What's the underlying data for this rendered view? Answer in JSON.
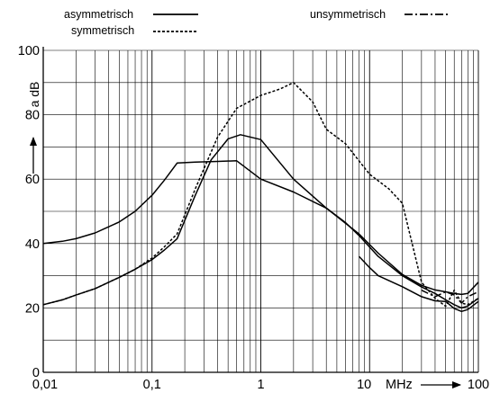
{
  "chart_data": {
    "type": "line",
    "title": "",
    "x_scale": "log",
    "y_scale": "linear",
    "xlim": [
      0.01,
      100
    ],
    "ylim": [
      0,
      100
    ],
    "grid": true,
    "xlabel": "MHz",
    "ylabel": "a dB",
    "x_ticks": [
      {
        "value": 0.01,
        "label": "0,01"
      },
      {
        "value": 0.1,
        "label": "0,1"
      },
      {
        "value": 1,
        "label": "1"
      },
      {
        "value": 10,
        "label": "10"
      },
      {
        "value": 100,
        "label": "100"
      }
    ],
    "y_ticks": [
      {
        "value": 0,
        "label": "0"
      },
      {
        "value": 20,
        "label": "20"
      },
      {
        "value": 40,
        "label": "40"
      },
      {
        "value": 60,
        "label": "60"
      },
      {
        "value": 80,
        "label": "80"
      },
      {
        "value": 100,
        "label": "100"
      }
    ],
    "legend": [
      {
        "label": "asymmetrisch",
        "style": "solid",
        "position": "top-left"
      },
      {
        "label": "symmetrisch",
        "style": "dotted",
        "position": "top-left"
      },
      {
        "label": "unsymmetrisch",
        "style": "dash-dot",
        "position": "top-right"
      }
    ],
    "series": [
      {
        "name": "asymmetrisch",
        "style": "solid",
        "curve": 1,
        "x": [
          0.01,
          0.015,
          0.02,
          0.03,
          0.05,
          0.07,
          0.1,
          0.13,
          0.17,
          0.25,
          0.4,
          0.6,
          1,
          2,
          4,
          8,
          12,
          20,
          30,
          40,
          50,
          60,
          70,
          80,
          100
        ],
        "y": [
          40,
          40.7,
          41.5,
          43.3,
          46.7,
          50,
          55,
          59.7,
          65,
          65.3,
          65.5,
          65.7,
          60,
          56,
          51,
          43,
          37,
          30.4,
          27,
          25.6,
          25,
          24.5,
          24.2,
          24.5,
          28
        ]
      },
      {
        "name": "asymmetrisch",
        "style": "solid",
        "curve": 2,
        "x": [
          0.01,
          0.015,
          0.02,
          0.03,
          0.05,
          0.07,
          0.1,
          0.13,
          0.17,
          0.25,
          0.35,
          0.5,
          0.65,
          1,
          2,
          4,
          6,
          8,
          12,
          20,
          30,
          40,
          50,
          60,
          70,
          80,
          100
        ],
        "y": [
          21,
          22.5,
          24,
          26,
          29.5,
          32,
          35,
          38,
          41.5,
          55,
          66,
          72.5,
          73.8,
          72.3,
          60,
          51,
          46.5,
          42.5,
          36,
          30,
          26.5,
          24.5,
          22.5,
          21,
          20,
          20.6,
          23
        ]
      },
      {
        "name": "asymmetrisch",
        "style": "solid",
        "curve": 3,
        "x": [
          8,
          10,
          12,
          20,
          30,
          40,
          50,
          60,
          70,
          80,
          100
        ],
        "y": [
          36,
          32.5,
          30,
          26.6,
          23.5,
          22.2,
          22,
          19.8,
          18.9,
          19.5,
          22
        ]
      },
      {
        "name": "symmetrisch",
        "style": "dotted",
        "x": [
          0.01,
          0.015,
          0.02,
          0.03,
          0.05,
          0.07,
          0.1,
          0.13,
          0.17,
          0.25,
          0.4,
          0.6,
          1,
          1.5,
          2,
          3,
          4,
          6,
          10,
          15,
          20,
          30,
          40,
          50,
          60,
          70,
          80,
          100
        ],
        "y": [
          21,
          22.5,
          24,
          26,
          29.5,
          32,
          35.5,
          39,
          43,
          57,
          73,
          82,
          86,
          88,
          90,
          84,
          75.5,
          71,
          61.5,
          57,
          52.5,
          28,
          23,
          20.5,
          25.5,
          21.5,
          21,
          23
        ]
      },
      {
        "name": "unsymmetrisch",
        "style": "dash-dot",
        "x": [
          30,
          40,
          50,
          60,
          70,
          80,
          100
        ],
        "y": [
          25.5,
          23.5,
          25,
          24,
          21.5,
          23.5,
          25
        ]
      }
    ]
  },
  "axis_labels": {
    "y_unit": "a dB",
    "y_arrow": "→",
    "x_unit": "MHz",
    "x_arrow": "→"
  }
}
